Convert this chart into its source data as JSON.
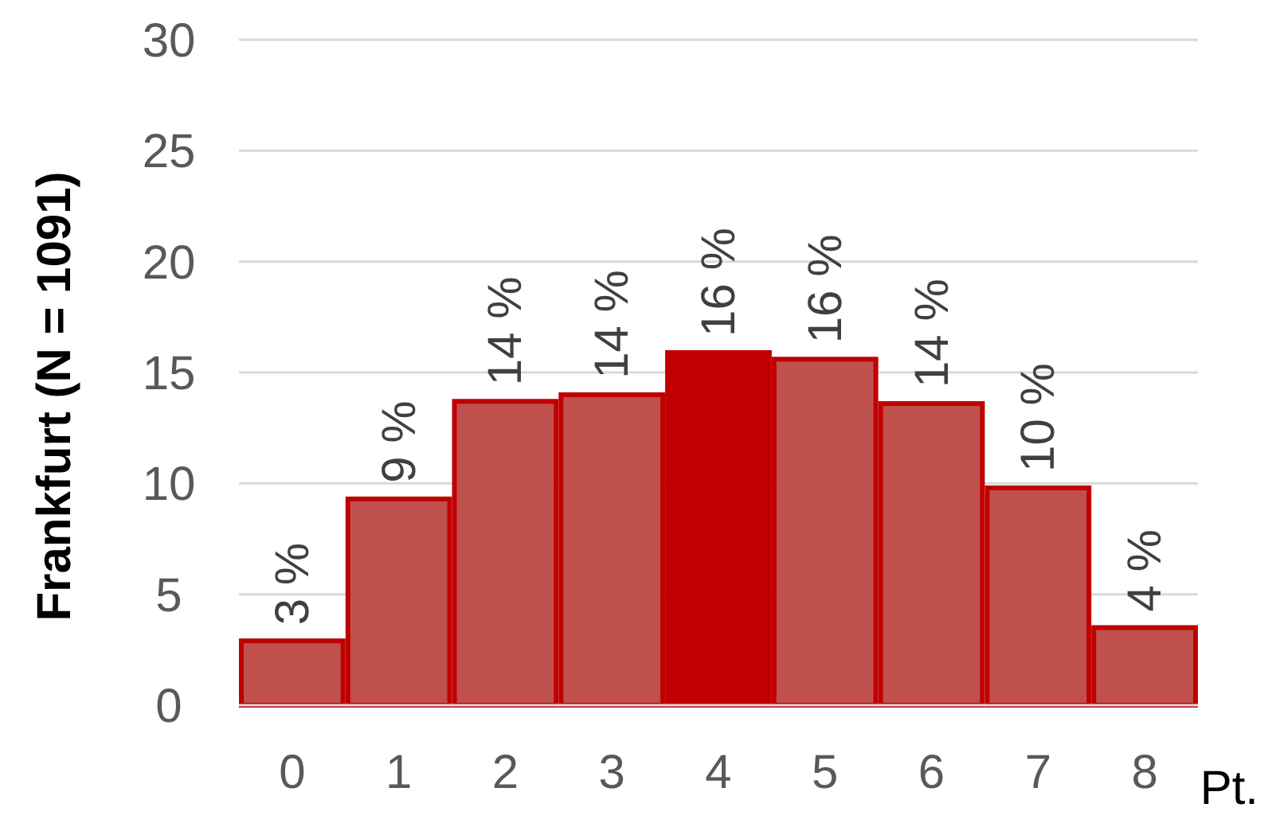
{
  "chart_data": {
    "type": "bar",
    "xlabel": "Pt.",
    "ylabel": "Frankfurt (N = 1091)",
    "categories": [
      "0",
      "1",
      "2",
      "3",
      "4",
      "5",
      "6",
      "7",
      "8"
    ],
    "values": [
      2.9,
      9.3,
      13.7,
      14.0,
      15.9,
      15.6,
      13.6,
      9.8,
      3.5
    ],
    "colors": [
      "#c0504d",
      "#c0504d",
      "#c0504d",
      "#c0504d",
      "#c00000",
      "#c0504d",
      "#c0504d",
      "#c0504d",
      "#c0504d"
    ],
    "value_labels": [
      "3 %",
      "9 %",
      "14 %",
      "14 %",
      "16 %",
      "16 %",
      "14 %",
      "10 %",
      "4 %"
    ],
    "ylim": [
      0,
      30
    ],
    "yticks": [
      0,
      5,
      10,
      15,
      20,
      25,
      30
    ],
    "grid": "y"
  }
}
